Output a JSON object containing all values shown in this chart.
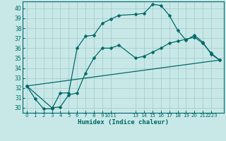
{
  "xlabel": "Humidex (Indice chaleur)",
  "bg_color": "#c8e8e8",
  "grid_color": "#a0c8c8",
  "line_color": "#006868",
  "xlim": [
    -0.5,
    23.5
  ],
  "ylim": [
    29.5,
    40.7
  ],
  "yticks": [
    30,
    31,
    32,
    33,
    34,
    35,
    36,
    37,
    38,
    39,
    40
  ],
  "xtick_positions": [
    0,
    1,
    2,
    3,
    4,
    5,
    6,
    7,
    8,
    9,
    10,
    13,
    14,
    15,
    16,
    17,
    18,
    19,
    20,
    21,
    22
  ],
  "xtick_labels": [
    "0",
    "1",
    "2",
    "3",
    "4",
    "5",
    "6",
    "7",
    "8",
    "9",
    "1011",
    "13",
    "14",
    "15",
    "16",
    "17",
    "18",
    "19",
    "20",
    "21",
    "2223"
  ],
  "line1_x": [
    0,
    1,
    2,
    3,
    4,
    5,
    6,
    7,
    8,
    9,
    10,
    11,
    13,
    14,
    15,
    16,
    17,
    18,
    19,
    20,
    21,
    22,
    23
  ],
  "line1_y": [
    32.2,
    30.9,
    29.9,
    29.9,
    31.5,
    31.5,
    36.0,
    37.2,
    37.3,
    38.5,
    38.9,
    39.3,
    39.4,
    39.5,
    40.4,
    40.3,
    39.3,
    37.8,
    36.8,
    37.3,
    36.6,
    35.4,
    34.8
  ],
  "line2_x": [
    0,
    3,
    4,
    5,
    6,
    7,
    8,
    9,
    10,
    11,
    13,
    14,
    15,
    16,
    17,
    18,
    19,
    20,
    21,
    22,
    23
  ],
  "line2_y": [
    32.2,
    30.0,
    30.1,
    31.3,
    31.5,
    33.5,
    35.0,
    36.0,
    36.0,
    36.3,
    35.0,
    35.2,
    35.6,
    36.0,
    36.5,
    36.7,
    36.9,
    37.1,
    36.5,
    35.5,
    34.8
  ],
  "line3_x": [
    0,
    23
  ],
  "line3_y": [
    32.2,
    34.8
  ]
}
